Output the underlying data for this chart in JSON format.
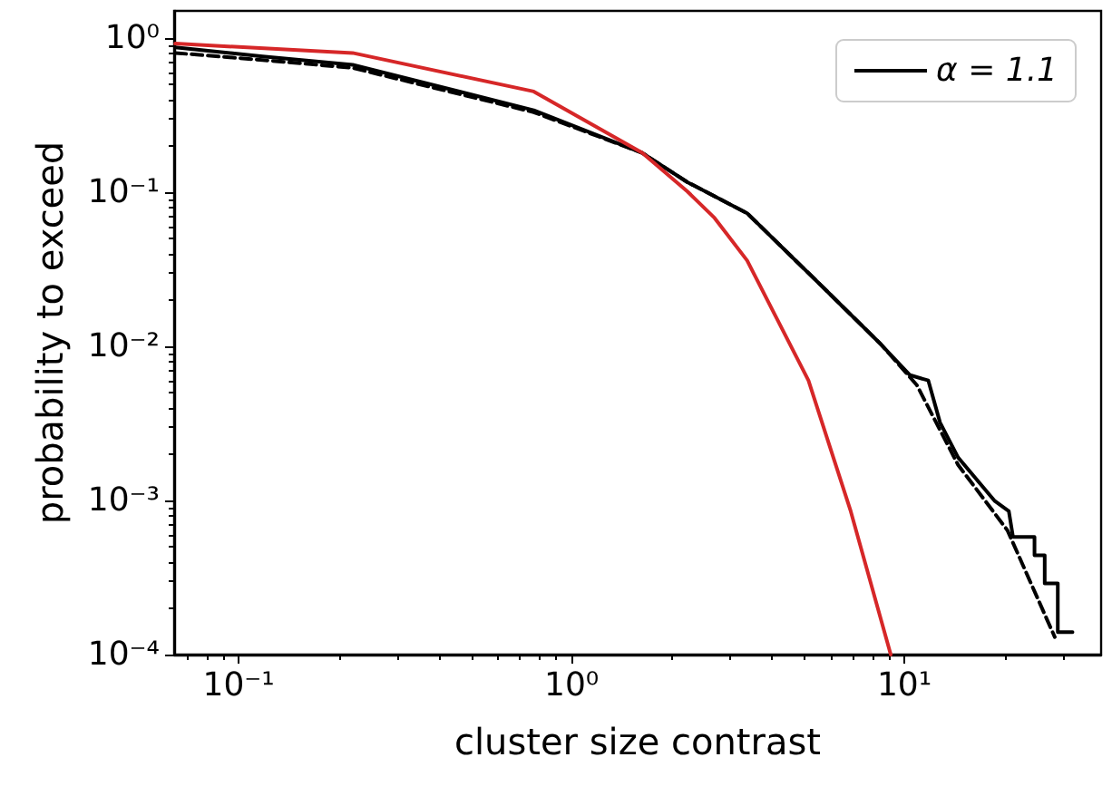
{
  "chart_data": {
    "type": "line",
    "xlabel": "cluster size contrast",
    "ylabel": "probability to exceed",
    "log": "xy",
    "grid": false,
    "legend": "top right",
    "marker": "none",
    "xlim": [
      0.064,
      39
    ],
    "ylim": [
      0.0001,
      1.5
    ],
    "xticks": [
      {
        "value": 0.1,
        "label": "10⁻¹"
      },
      {
        "value": 1,
        "label": "10⁰"
      },
      {
        "value": 10,
        "label": "10¹"
      }
    ],
    "yticks": [
      {
        "value": 0.0001,
        "label": "10⁻⁴"
      },
      {
        "value": 0.001,
        "label": "10⁻³"
      },
      {
        "value": 0.01,
        "label": "10⁻²"
      },
      {
        "value": 0.1,
        "label": "10⁻¹"
      },
      {
        "value": 1,
        "label": "10⁰"
      }
    ],
    "series": [
      {
        "name": "α = 1.1",
        "type": "line",
        "color": "#000000",
        "line_style": "solid",
        "x": [
          0.0645,
          0.118,
          0.22,
          0.77,
          1.63,
          2.23,
          3.37,
          5.83,
          8.5,
          10.4,
          11.8,
          12.8,
          14.5,
          18.7,
          20.6,
          21.2,
          24.6,
          24.6,
          26.4,
          26.4,
          28.9,
          28.9,
          32
        ],
        "values": [
          0.87,
          0.76,
          0.67,
          0.34,
          0.18,
          0.116,
          0.073,
          0.023,
          0.0103,
          0.0065,
          0.006,
          0.0032,
          0.0019,
          0.00099,
          0.00085,
          0.00058,
          0.00058,
          0.00044,
          0.00044,
          0.00029,
          0.00029,
          0.00014,
          0.00014
        ]
      },
      {
        "color": "#000000",
        "line_style": "dashed",
        "x": [
          0.0645,
          0.118,
          0.22,
          0.77,
          1.63,
          2.23,
          3.37,
          5.83,
          8.5,
          10.9,
          14.5,
          20.4,
          28.3
        ],
        "values": [
          0.8,
          0.72,
          0.64,
          0.33,
          0.18,
          0.116,
          0.073,
          0.023,
          0.0103,
          0.0056,
          0.0017,
          0.00064,
          0.00013
        ]
      },
      {
        "color": "#d62728",
        "line_style": "solid",
        "x": [
          0.0645,
          0.22,
          0.77,
          1.63,
          2.23,
          2.69,
          3.37,
          5.15,
          6.9,
          9.1
        ],
        "values": [
          0.92,
          0.8,
          0.45,
          0.18,
          0.101,
          0.068,
          0.036,
          0.006,
          0.00085,
          0.0001
        ]
      }
    ]
  }
}
